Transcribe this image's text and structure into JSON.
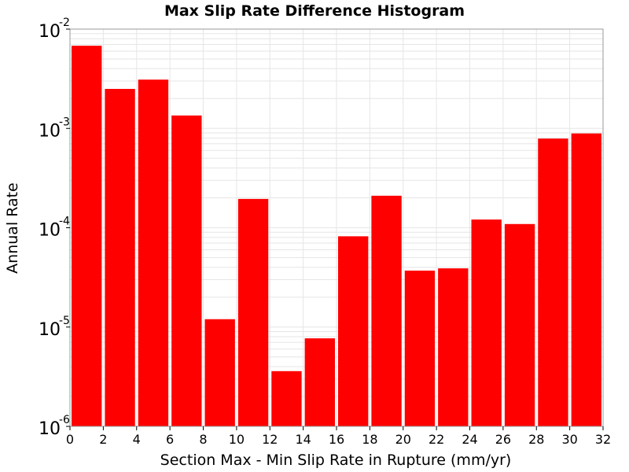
{
  "chart_data": {
    "type": "bar",
    "title": "Max Slip Rate Difference Histogram",
    "xlabel": "Section Max - Min Slip Rate in Rupture (mm/yr)",
    "ylabel": "Annual Rate",
    "xlim": [
      0,
      32
    ],
    "ylim": [
      1e-06,
      0.01
    ],
    "y_scale": "log",
    "x_ticks": [
      "0",
      "2",
      "4",
      "6",
      "8",
      "10",
      "12",
      "14",
      "16",
      "18",
      "20",
      "22",
      "24",
      "26",
      "28",
      "30",
      "32"
    ],
    "y_ticks": [
      {
        "base": "10",
        "exp": "-6",
        "value": 1e-06
      },
      {
        "base": "10",
        "exp": "-5",
        "value": 1e-05
      },
      {
        "base": "10",
        "exp": "-4",
        "value": 0.0001
      },
      {
        "base": "10",
        "exp": "-3",
        "value": 0.001
      },
      {
        "base": "10",
        "exp": "-2",
        "value": 0.01
      }
    ],
    "bin_width": 2,
    "bars": [
      {
        "x": 1,
        "value": 0.0068
      },
      {
        "x": 3,
        "value": 0.0025
      },
      {
        "x": 5,
        "value": 0.0031
      },
      {
        "x": 7,
        "value": 0.00135
      },
      {
        "x": 9,
        "value": 1.2e-05
      },
      {
        "x": 11,
        "value": 0.000195
      },
      {
        "x": 13,
        "value": 3.6e-06
      },
      {
        "x": 15,
        "value": 7.7e-06
      },
      {
        "x": 17,
        "value": 8.2e-05
      },
      {
        "x": 19,
        "value": 0.00021
      },
      {
        "x": 21,
        "value": 3.7e-05
      },
      {
        "x": 23,
        "value": 3.9e-05
      },
      {
        "x": 25,
        "value": 0.000121
      },
      {
        "x": 27,
        "value": 0.000109
      },
      {
        "x": 29,
        "value": 0.00079
      },
      {
        "x": 31,
        "value": 0.00089
      }
    ],
    "bar_color": "#ff0000",
    "grid": true,
    "grid_color": "#e6e6e6"
  }
}
